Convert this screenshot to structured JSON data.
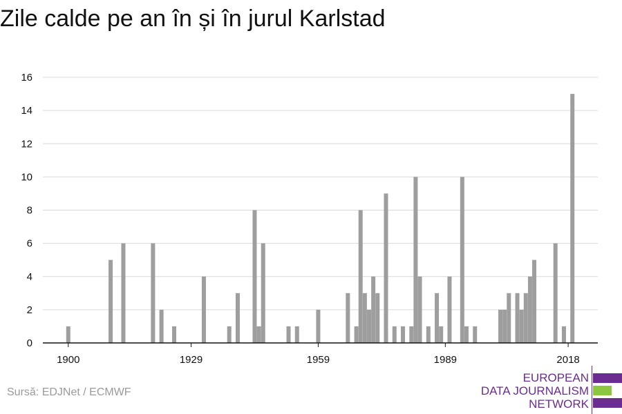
{
  "colors": {
    "bar": "#9e9e9e",
    "grid": "#d9d9d9",
    "axis": "#111111",
    "logo_purple": "#6a2c91",
    "logo_green": "#8dc63f"
  },
  "title": "Zile calde pe an în și în jurul Karlstad",
  "source": "Sursă: EDJNet / ECMWF",
  "logo": {
    "lines": [
      "EUROPEAN",
      "DATA JOURNALISM",
      "NETWORK"
    ]
  },
  "chart_data": {
    "type": "bar",
    "title": "Zile calde pe an în și în jurul Karlstad",
    "xlabel": "",
    "ylabel": "",
    "x_range": [
      1894,
      2025
    ],
    "ylim": [
      0,
      16
    ],
    "y_ticks": [
      0,
      2,
      4,
      6,
      8,
      10,
      12,
      14,
      16
    ],
    "x_ticks": [
      1900,
      1929,
      1959,
      1989,
      2018
    ],
    "grid": true,
    "x": [
      1900,
      1910,
      1913,
      1920,
      1922,
      1925,
      1932,
      1938,
      1940,
      1944,
      1945,
      1946,
      1952,
      1954,
      1959,
      1966,
      1968,
      1969,
      1970,
      1971,
      1972,
      1973,
      1975,
      1977,
      1979,
      1981,
      1982,
      1983,
      1985,
      1987,
      1988,
      1990,
      1993,
      1994,
      1996,
      2002,
      2003,
      2004,
      2006,
      2007,
      2008,
      2009,
      2010,
      2015,
      2017,
      2019
    ],
    "values": [
      1,
      5,
      6,
      6,
      2,
      1,
      4,
      1,
      3,
      8,
      1,
      6,
      1,
      1,
      2,
      3,
      1,
      8,
      3,
      2,
      4,
      3,
      9,
      1,
      1,
      1,
      10,
      4,
      1,
      3,
      1,
      4,
      10,
      1,
      1,
      2,
      2,
      3,
      3,
      2,
      3,
      4,
      5,
      6,
      1,
      15
    ]
  }
}
